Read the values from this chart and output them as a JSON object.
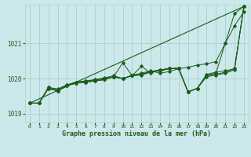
{
  "title": "Graphe pression niveau de la mer (hPa)",
  "bg_color": "#cce8ea",
  "grid_color": "#aacfcf",
  "line_color": "#1a5c1a",
  "xlim": [
    -0.5,
    23.5
  ],
  "ylim": [
    1018.75,
    1022.1
  ],
  "yticks": [
    1019,
    1020,
    1021
  ],
  "xticks": [
    0,
    1,
    2,
    3,
    4,
    5,
    6,
    7,
    8,
    9,
    10,
    11,
    12,
    13,
    14,
    15,
    16,
    17,
    18,
    19,
    20,
    21,
    22,
    23
  ],
  "trend_line": [
    [
      0,
      1019.3
    ],
    [
      23,
      1022.05
    ]
  ],
  "series": [
    [
      1019.3,
      1019.3,
      1019.75,
      1019.7,
      1019.82,
      1019.9,
      1019.93,
      1019.97,
      1020.02,
      1020.08,
      1020.0,
      1020.1,
      1020.15,
      1020.22,
      1020.15,
      1020.2,
      1020.28,
      1020.32,
      1020.38,
      1020.42,
      1020.48,
      1021.0,
      1021.5,
      1021.9
    ],
    [
      1019.3,
      1019.3,
      1019.75,
      1019.68,
      1019.82,
      1019.9,
      1019.93,
      1019.95,
      1020.0,
      1020.05,
      1020.45,
      1020.08,
      1020.35,
      1020.15,
      1020.25,
      1020.28,
      1020.3,
      1019.62,
      1019.72,
      1020.1,
      1020.15,
      1021.0,
      1021.85,
      1022.05
    ],
    [
      1019.3,
      1019.3,
      1019.72,
      1019.65,
      1019.8,
      1019.87,
      1019.9,
      1019.93,
      1019.97,
      1020.05,
      1020.0,
      1020.08,
      1020.12,
      1020.2,
      1020.25,
      1020.28,
      1020.28,
      1019.62,
      1019.72,
      1020.08,
      1020.12,
      1020.18,
      1020.28,
      1022.05
    ],
    [
      1019.3,
      1019.3,
      1019.72,
      1019.65,
      1019.8,
      1019.87,
      1019.9,
      1019.93,
      1019.97,
      1020.05,
      1020.0,
      1020.08,
      1020.12,
      1020.2,
      1020.22,
      1020.28,
      1020.3,
      1019.62,
      1019.72,
      1020.12,
      1020.18,
      1020.22,
      1020.28,
      1022.05
    ],
    [
      1019.3,
      1019.3,
      1019.72,
      1019.65,
      1019.8,
      1019.87,
      1019.9,
      1019.93,
      1019.97,
      1020.05,
      1020.0,
      1020.08,
      1020.1,
      1020.18,
      1020.22,
      1020.28,
      1020.28,
      1019.62,
      1019.72,
      1020.05,
      1020.1,
      1020.15,
      1020.25,
      1022.05
    ]
  ]
}
